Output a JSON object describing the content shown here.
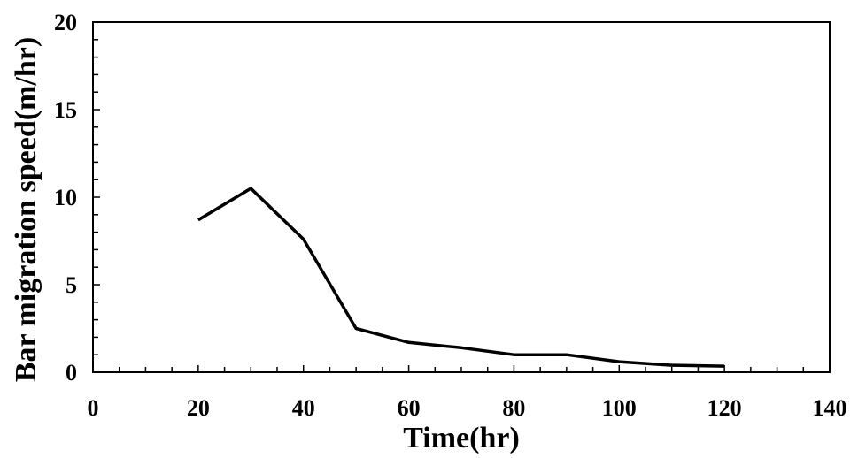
{
  "chart_data": {
    "type": "line",
    "title": "",
    "xlabel": "Time(hr)",
    "ylabel": "Bar migration speed(m/hr)",
    "xlim": [
      0,
      140
    ],
    "ylim": [
      0,
      20
    ],
    "x_ticks": [
      0,
      20,
      40,
      60,
      80,
      100,
      120,
      140
    ],
    "y_ticks": [
      0,
      5,
      10,
      15,
      20
    ],
    "x_minor_step": 5,
    "y_minor_step": 1,
    "grid": false,
    "series": [
      {
        "x": [
          20,
          30,
          40,
          50,
          60,
          70,
          80,
          90,
          100,
          110,
          120
        ],
        "y": [
          8.7,
          10.5,
          7.6,
          2.5,
          1.7,
          1.4,
          1.0,
          1.0,
          0.6,
          0.4,
          0.35
        ],
        "color": "#000000"
      }
    ]
  }
}
